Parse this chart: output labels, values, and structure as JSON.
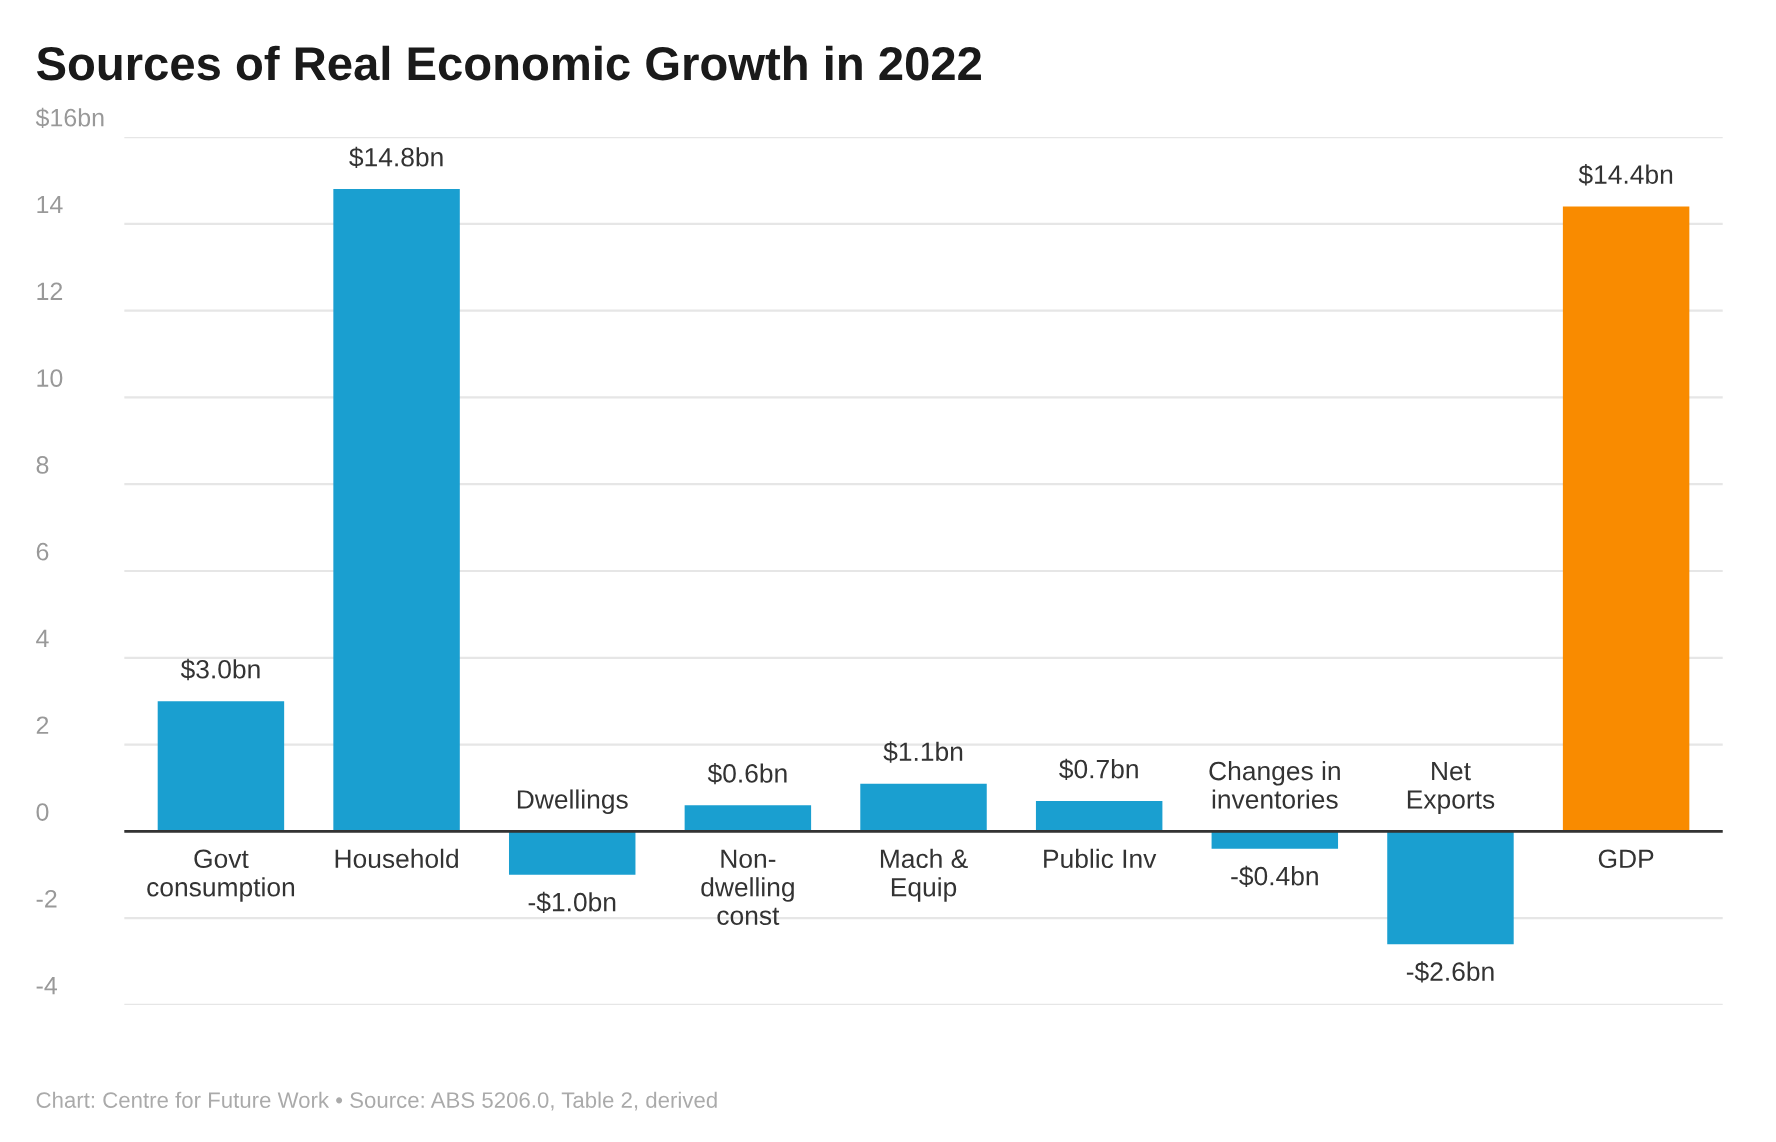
{
  "chart_data": {
    "type": "bar",
    "title": "Sources of Real Economic Growth in 2022",
    "categories": [
      "Govt\nconsumption",
      "Household",
      "Dwellings",
      "Non-\ndwelling\nconst",
      "Mach &\nEquip",
      "Public Inv",
      "Changes in\ninventories",
      "Net\nExports",
      "GDP"
    ],
    "values": [
      3.0,
      14.8,
      -1.0,
      0.6,
      1.1,
      0.7,
      -0.4,
      -2.6,
      14.4
    ],
    "value_labels": [
      "$3.0bn",
      "$14.8bn",
      "-$1.0bn",
      "$0.6bn",
      "$1.1bn",
      "$0.7bn",
      "-$0.4bn",
      "-$2.6bn",
      "$14.4bn"
    ],
    "colors": [
      "#1a9fd0",
      "#1a9fd0",
      "#1a9fd0",
      "#1a9fd0",
      "#1a9fd0",
      "#1a9fd0",
      "#1a9fd0",
      "#1a9fd0",
      "#f98b00"
    ],
    "ylim": [
      -4,
      16
    ],
    "yticks": [
      -4,
      -2,
      0,
      2,
      4,
      6,
      8,
      10,
      12,
      14,
      {
        "value": 16,
        "label": "$16bn"
      }
    ],
    "grid": "y",
    "annotations": [
      "Chart: Centre for Future Work • Source: ABS 5206.0, Table 2, derived"
    ]
  }
}
